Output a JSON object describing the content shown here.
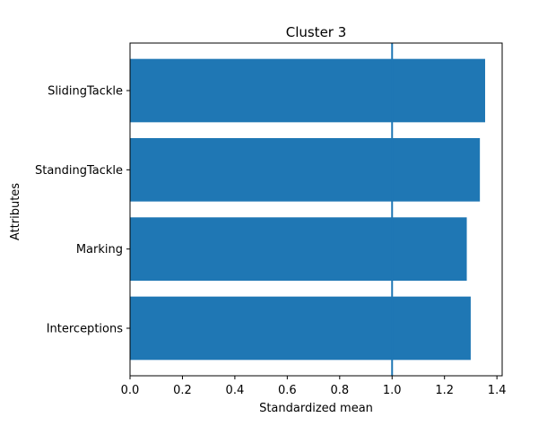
{
  "chart_data": {
    "type": "bar",
    "orientation": "horizontal",
    "title": "Cluster 3",
    "xlabel": "Standardized mean",
    "ylabel": "Attributes",
    "categories": [
      "SlidingTackle",
      "StandingTackle",
      "Marking",
      "Interceptions"
    ],
    "values": [
      1.355,
      1.335,
      1.285,
      1.3
    ],
    "xlim": [
      0.0,
      1.42
    ],
    "xticks": [
      "0.0",
      "0.2",
      "0.4",
      "0.6",
      "0.8",
      "1.0",
      "1.2",
      "1.4"
    ],
    "reference_line_x": 1.0,
    "grid": false,
    "colors": {
      "bar": "#1f77b4",
      "reference_line": "#1f77b4",
      "axes": "#000000"
    }
  }
}
